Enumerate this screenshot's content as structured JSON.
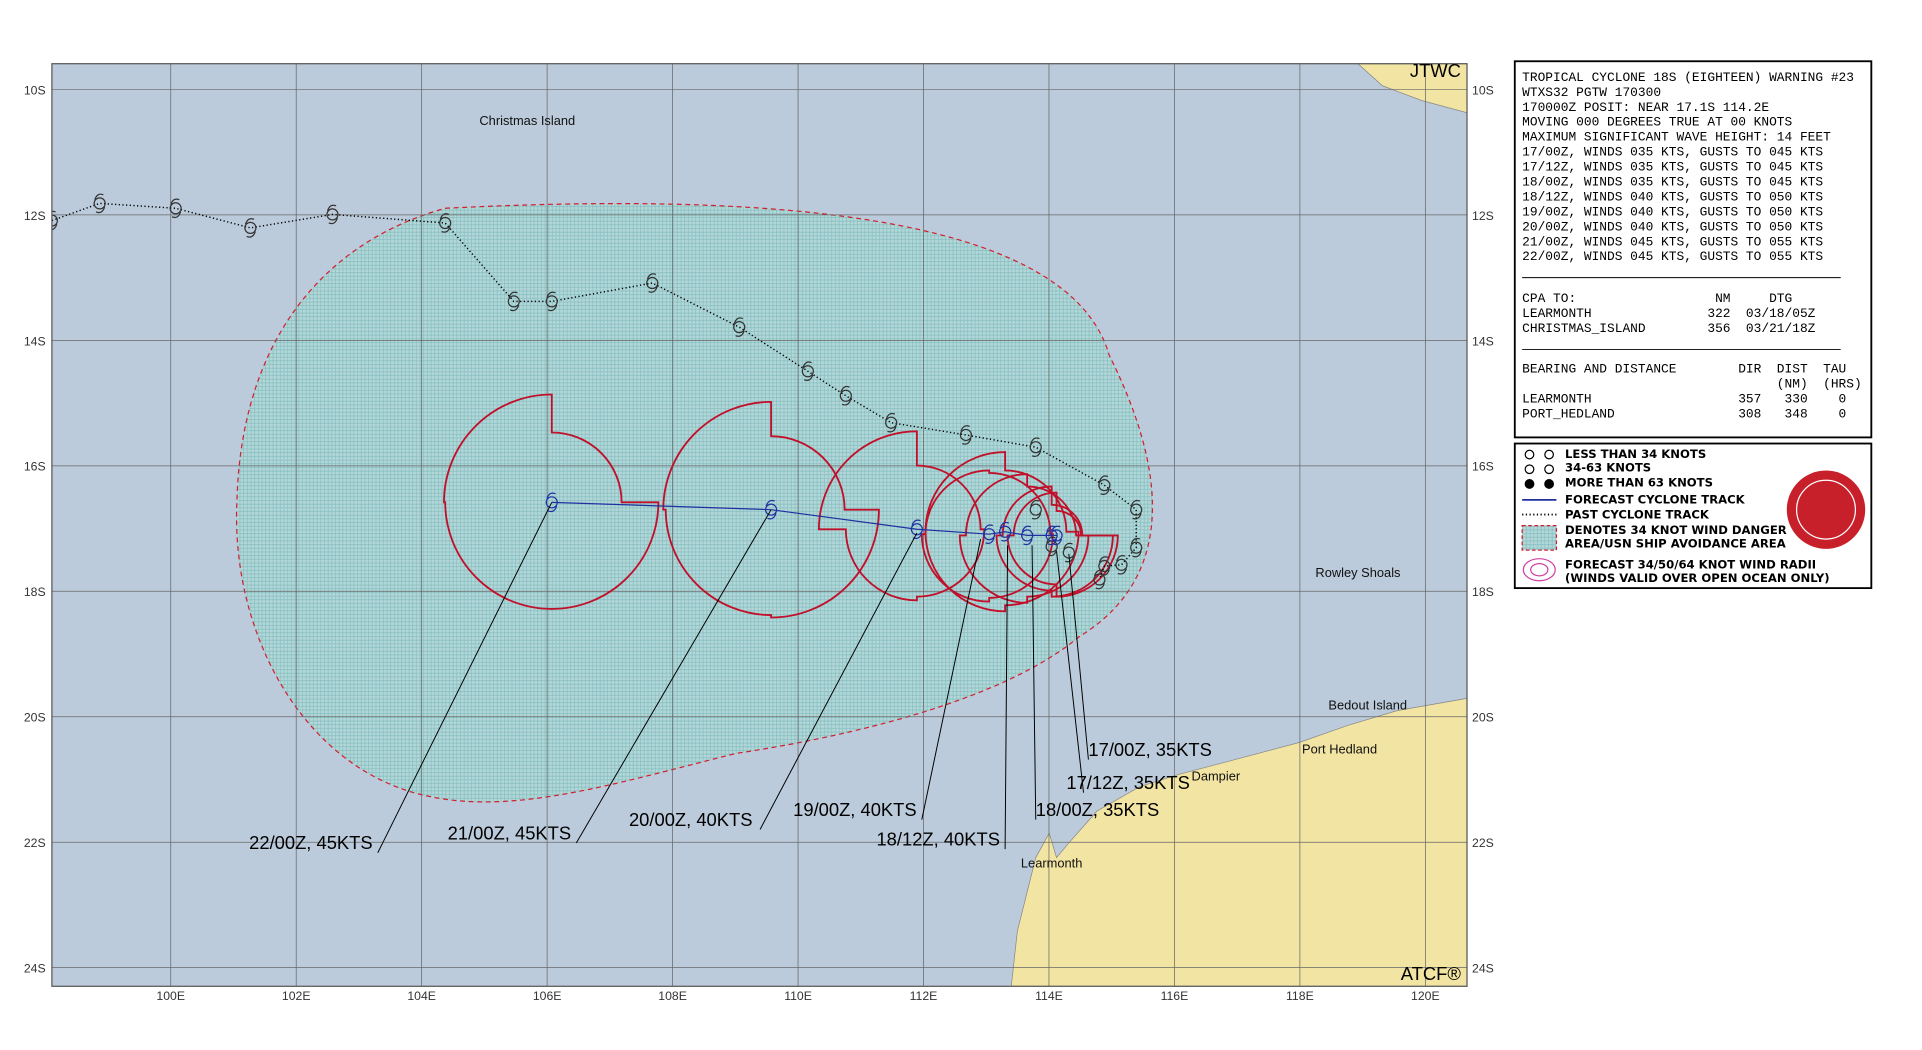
{
  "map": {
    "corner_top": "JTWC",
    "corner_bottom": "ATCF®",
    "lat_labels": [
      "10S",
      "12S",
      "14S",
      "16S",
      "18S",
      "20S",
      "22S",
      "24S"
    ],
    "lon_labels": [
      "100E",
      "102E",
      "104E",
      "106E",
      "108E",
      "110E",
      "112E",
      "114E",
      "116E",
      "118E",
      "120E"
    ],
    "places": [
      "Christmas Island",
      "Rowley Shoals",
      "Bedout Island",
      "Port Hedland",
      "Dampier",
      "Learmonth"
    ],
    "forecast_labels": [
      "17/00Z, 35KTS",
      "17/12Z, 35KTS",
      "18/00Z, 35KTS",
      "18/12Z, 40KTS",
      "19/00Z, 40KTS",
      "20/00Z, 40KTS",
      "21/00Z, 45KTS",
      "22/00Z, 45KTS"
    ]
  },
  "warning": {
    "header": [
      "TROPICAL CYCLONE 18S (EIGHTEEN) WARNING #23",
      "WTXS32 PGTW 170300",
      "170000Z POSIT: NEAR 17.1S 114.2E",
      "MOVING 000 DEGREES TRUE AT 00 KNOTS",
      "MAXIMUM SIGNIFICANT WAVE HEIGHT: 14 FEET",
      "17/00Z, WINDS 035 KTS, GUSTS TO 045 KTS",
      "17/12Z, WINDS 035 KTS, GUSTS TO 045 KTS",
      "18/00Z, WINDS 035 KTS, GUSTS TO 045 KTS",
      "18/12Z, WINDS 040 KTS, GUSTS TO 050 KTS",
      "19/00Z, WINDS 040 KTS, GUSTS TO 050 KTS",
      "20/00Z, WINDS 040 KTS, GUSTS TO 050 KTS",
      "21/00Z, WINDS 045 KTS, GUSTS TO 055 KTS",
      "22/00Z, WINDS 045 KTS, GUSTS TO 055 KTS"
    ],
    "cpa": [
      "CPA TO:                  NM     DTG",
      "LEARMONTH               322  03/18/05Z",
      "CHRISTMAS_ISLAND        356  03/21/18Z"
    ],
    "bearing": [
      "BEARING AND DISTANCE        DIR  DIST  TAU",
      "                                 (NM)  (HRS)",
      "LEARMONTH                   357   330    0",
      "PORT_HEDLAND                308   348    0"
    ]
  },
  "legend": [
    "LESS THAN 34 KNOTS",
    "34-63 KNOTS",
    "MORE THAN 63 KNOTS",
    "FORECAST CYCLONE TRACK",
    "PAST CYCLONE TRACK",
    "DENOTES 34 KNOT WIND DANGER",
    "AREA/USN SHIP AVOIDANCE AREA",
    "FORECAST 34/50/64 KNOT WIND RADII",
    "(WINDS VALID OVER OPEN OCEAN ONLY)"
  ]
}
